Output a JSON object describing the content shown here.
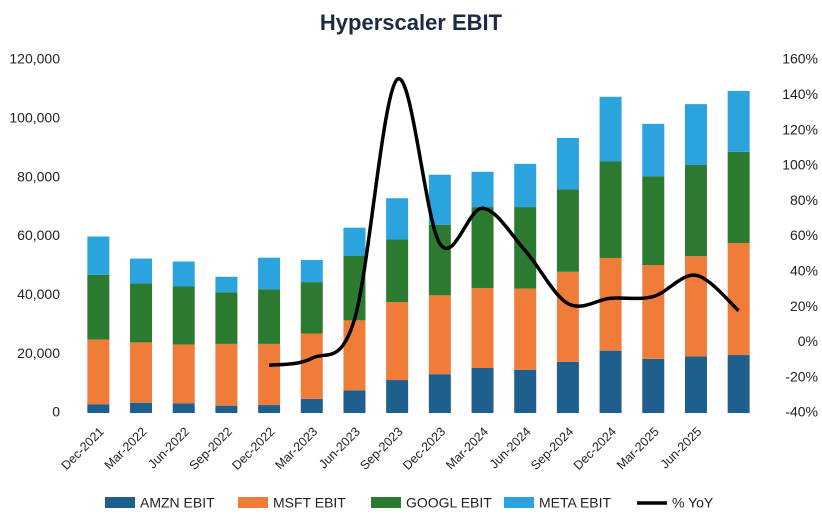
{
  "chart_data": {
    "type": "bar_line",
    "title": "Hyperscaler EBIT",
    "categories": [
      "Dec-2021",
      "Mar-2022",
      "Jun-2022",
      "Sep-2022",
      "Dec-2022",
      "Mar-2023",
      "Jun-2023",
      "Sep-2023",
      "Dec-2023",
      "Mar-2024",
      "Jun-2024",
      "Sep-2024",
      "Dec-2024",
      "Mar-2025",
      "Jun-2025",
      null
    ],
    "series": [
      {
        "name": "AMZN EBIT",
        "color": "#1f5f8e",
        "values": [
          3000,
          3500,
          3300,
          2500,
          2700,
          4800,
          7700,
          11200,
          13200,
          15300,
          14700,
          17400,
          21200,
          18400,
          19200,
          19700
        ]
      },
      {
        "name": "MSFT EBIT",
        "color": "#f07c3a",
        "values": [
          22000,
          20500,
          20000,
          21000,
          20800,
          22200,
          23800,
          26500,
          26800,
          27200,
          27600,
          30600,
          31500,
          31900,
          34100,
          38100
        ]
      },
      {
        "name": "GOOGL EBIT",
        "color": "#2b7a30",
        "values": [
          22000,
          20000,
          19700,
          17500,
          18500,
          17500,
          22000,
          21300,
          24000,
          27500,
          27700,
          28000,
          32800,
          30200,
          31000,
          31000
        ]
      },
      {
        "name": "META EBIT",
        "color": "#2ba4de",
        "values": [
          13000,
          8500,
          8500,
          5300,
          10800,
          7500,
          9500,
          14000,
          17000,
          12000,
          14700,
          17500,
          22000,
          17800,
          20700,
          20700
        ]
      },
      {
        "name": "% YoY",
        "color": "#000000",
        "axis": "y2",
        "values": [
          null,
          null,
          null,
          null,
          -13,
          -9,
          13,
          149,
          56,
          76,
          52,
          22,
          25,
          26,
          38,
          18
        ]
      }
    ],
    "ylim": [
      0,
      120000
    ],
    "yticks": [
      0,
      {
        "value": 20000,
        "label": "20,000"
      },
      {
        "value": 40000,
        "label": "40,000"
      },
      {
        "value": 60000,
        "label": "60,000"
      },
      {
        "value": 80000,
        "label": "80,000"
      },
      {
        "value": 100000,
        "label": "100,000"
      },
      {
        "value": 120000,
        "label": "120,000"
      }
    ],
    "y2lim": [
      -40,
      160
    ],
    "y2ticks": [
      {
        "value": -40,
        "label": "-40%"
      },
      {
        "value": -20,
        "label": "-20%"
      },
      {
        "value": 0,
        "label": "0%"
      },
      {
        "value": 20,
        "label": "20%"
      },
      {
        "value": 40,
        "label": "40%"
      },
      {
        "value": 60,
        "label": "60%"
      },
      {
        "value": 80,
        "label": "80%"
      },
      {
        "value": 100,
        "label": "100%"
      },
      {
        "value": 120,
        "label": "120%"
      },
      {
        "value": 140,
        "label": "140%"
      },
      {
        "value": 160,
        "label": "160%"
      }
    ],
    "legend": "bottom"
  }
}
